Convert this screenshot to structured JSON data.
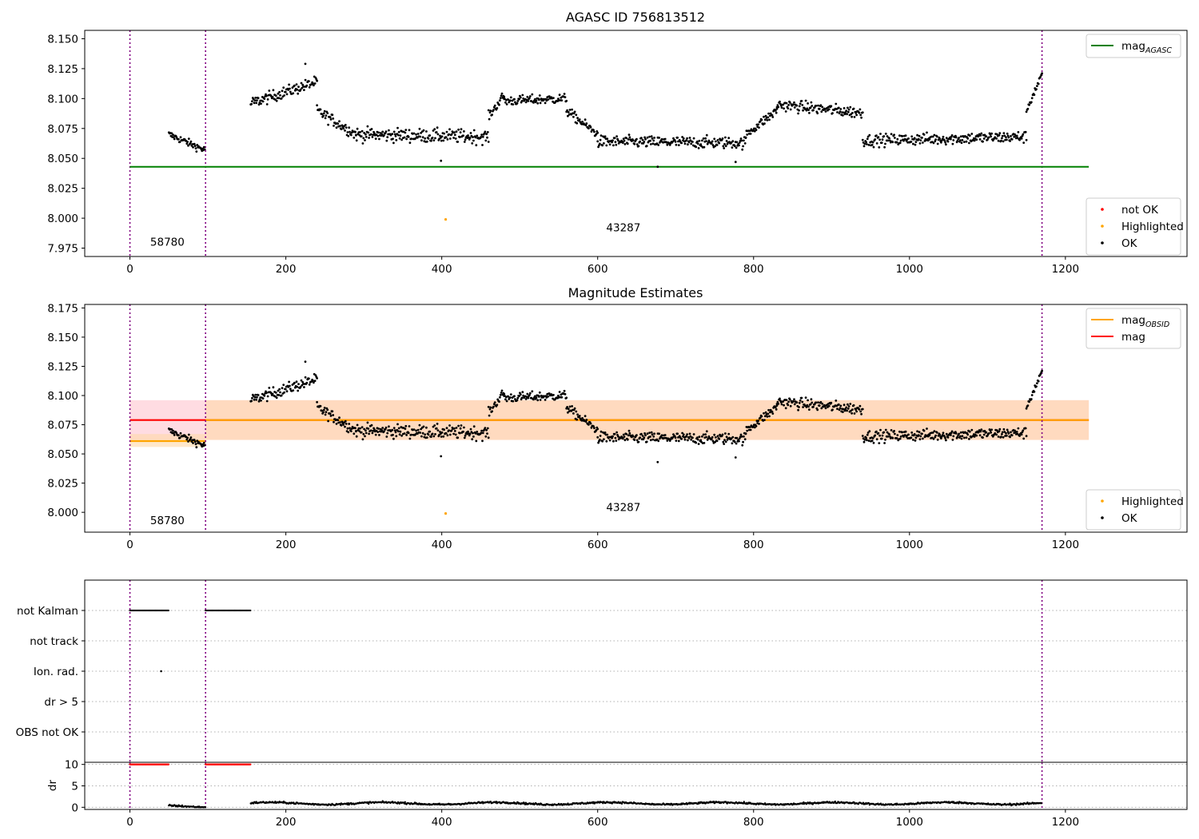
{
  "chart_data": [
    {
      "type": "scatter",
      "title": "AGASC ID 756813512",
      "xlim": [
        -58,
        1356
      ],
      "ylim": [
        7.968,
        8.157
      ],
      "xticks": [
        0,
        200,
        400,
        600,
        800,
        1000,
        1200
      ],
      "yticks": [
        7.975,
        8.0,
        8.025,
        8.05,
        8.075,
        8.1,
        8.125,
        8.15
      ],
      "vlines": [
        0,
        97,
        1170
      ],
      "hline": {
        "name": "mag_AGASC",
        "value": 8.043,
        "xrange": [
          0,
          1230
        ],
        "color": "#008000"
      },
      "annotations": [
        {
          "text": "58780",
          "x": 48,
          "y": 7.977
        },
        {
          "text": "43287",
          "x": 633,
          "y": 7.989
        }
      ],
      "highlighted_points": [
        {
          "x": 405,
          "y": 7.999
        }
      ],
      "ok_segments": [
        {
          "x_start": 50,
          "x_end": 96,
          "y_start": 8.07,
          "y_end": 8.057,
          "amp": 0.004
        },
        {
          "x_start": 155,
          "x_end": 240,
          "y_start": 8.096,
          "y_end": 8.114,
          "amp": 0.006
        },
        {
          "x_start": 240,
          "x_end": 290,
          "y_start": 8.09,
          "y_end": 8.07,
          "amp": 0.006
        },
        {
          "x_start": 290,
          "x_end": 460,
          "y_start": 8.07,
          "y_end": 8.068,
          "amp": 0.007
        },
        {
          "x_start": 460,
          "x_end": 480,
          "y_start": 8.085,
          "y_end": 8.103,
          "amp": 0.005
        },
        {
          "x_start": 480,
          "x_end": 560,
          "y_start": 8.098,
          "y_end": 8.1,
          "amp": 0.005
        },
        {
          "x_start": 560,
          "x_end": 600,
          "y_start": 8.09,
          "y_end": 8.07,
          "amp": 0.005
        },
        {
          "x_start": 600,
          "x_end": 790,
          "y_start": 8.064,
          "y_end": 8.063,
          "amp": 0.006
        },
        {
          "x_start": 790,
          "x_end": 830,
          "y_start": 8.07,
          "y_end": 8.09,
          "amp": 0.005
        },
        {
          "x_start": 830,
          "x_end": 940,
          "y_start": 8.095,
          "y_end": 8.088,
          "amp": 0.006
        },
        {
          "x_start": 940,
          "x_end": 1150,
          "y_start": 8.065,
          "y_end": 8.068,
          "amp": 0.006
        },
        {
          "x_start": 1150,
          "x_end": 1170,
          "y_start": 8.09,
          "y_end": 8.12,
          "amp": 0.004
        }
      ],
      "legends": [
        {
          "position": "upper-right",
          "entries": [
            {
              "label": "mag",
              "sub": "AGASC",
              "kind": "line",
              "color": "#008000"
            }
          ]
        },
        {
          "position": "lower-right",
          "entries": [
            {
              "label": "not OK",
              "kind": "dot",
              "color": "#ff0000"
            },
            {
              "label": "Highlighted",
              "kind": "dot",
              "color": "#ffa500"
            },
            {
              "label": "OK",
              "kind": "dot",
              "color": "#000000"
            }
          ]
        }
      ]
    },
    {
      "type": "scatter",
      "title": "Magnitude Estimates",
      "xlim": [
        -58,
        1356
      ],
      "ylim": [
        7.983,
        8.178
      ],
      "xticks": [
        0,
        200,
        400,
        600,
        800,
        1000,
        1200
      ],
      "yticks": [
        8.0,
        8.025,
        8.05,
        8.075,
        8.1,
        8.125,
        8.15,
        8.175
      ],
      "vlines": [
        0,
        97,
        1170
      ],
      "hlines": [
        {
          "name": "mag",
          "value": 8.079,
          "xrange": [
            0,
            1230
          ],
          "color": "#ff0000",
          "band": [
            8.062,
            8.096
          ],
          "band_color": "#ffc0cb"
        },
        {
          "name": "mag_OBSID_1",
          "value": 8.061,
          "xrange": [
            0,
            97
          ],
          "color": "#ffa500",
          "band": [
            8.056,
            8.067
          ],
          "band_color": "#ffd9a8"
        },
        {
          "name": "mag_OBSID_2",
          "value": 8.079,
          "xrange": [
            97,
            1230
          ],
          "color": "#ffa500",
          "band": [
            8.062,
            8.096
          ],
          "band_color": "#ffd9a8"
        }
      ],
      "annotations": [
        {
          "text": "58780",
          "x": 48,
          "y": 7.99
        },
        {
          "text": "43287",
          "x": 633,
          "y": 8.001
        }
      ],
      "highlighted_points": [
        {
          "x": 405,
          "y": 7.999
        }
      ],
      "legends": [
        {
          "position": "upper-right",
          "entries": [
            {
              "label": "mag",
              "sub": "OBSID",
              "kind": "line",
              "color": "#ffa500"
            },
            {
              "label": "mag",
              "kind": "line",
              "color": "#ff0000"
            }
          ]
        },
        {
          "position": "lower-right",
          "entries": [
            {
              "label": "Highlighted",
              "kind": "dot",
              "color": "#ffa500"
            },
            {
              "label": "OK",
              "kind": "dot",
              "color": "#000000"
            }
          ]
        }
      ]
    },
    {
      "type": "scatter",
      "title": "",
      "xlim": [
        -58,
        1356
      ],
      "flag_rows": [
        "not Kalman",
        "not track",
        "Ion. rad.",
        "dr > 5",
        "OBS not OK"
      ],
      "flags": [
        {
          "row": "not Kalman",
          "ranges": [
            [
              0,
              50
            ],
            [
              97,
              155
            ]
          ]
        },
        {
          "row": "Ion. rad.",
          "points": [
            40
          ]
        }
      ],
      "vlines": [
        0,
        97,
        1170
      ]
    },
    {
      "type": "scatter",
      "title": "",
      "ylabel": "dr",
      "xlim": [
        -58,
        1356
      ],
      "ylim": [
        -0.5,
        10.5
      ],
      "xticks": [
        0,
        200,
        400,
        600,
        800,
        1000,
        1200
      ],
      "yticks": [
        0,
        5,
        10
      ],
      "vlines": [
        0,
        97,
        1170
      ],
      "clipped_red_ranges": [
        [
          0,
          50
        ],
        [
          97,
          155
        ]
      ],
      "clip_value": 10,
      "dr_level": [
        {
          "x_start": 50,
          "x_end": 97,
          "y": 0.2
        },
        {
          "x_start": 155,
          "x_end": 1170,
          "y": 0.9
        }
      ]
    }
  ]
}
